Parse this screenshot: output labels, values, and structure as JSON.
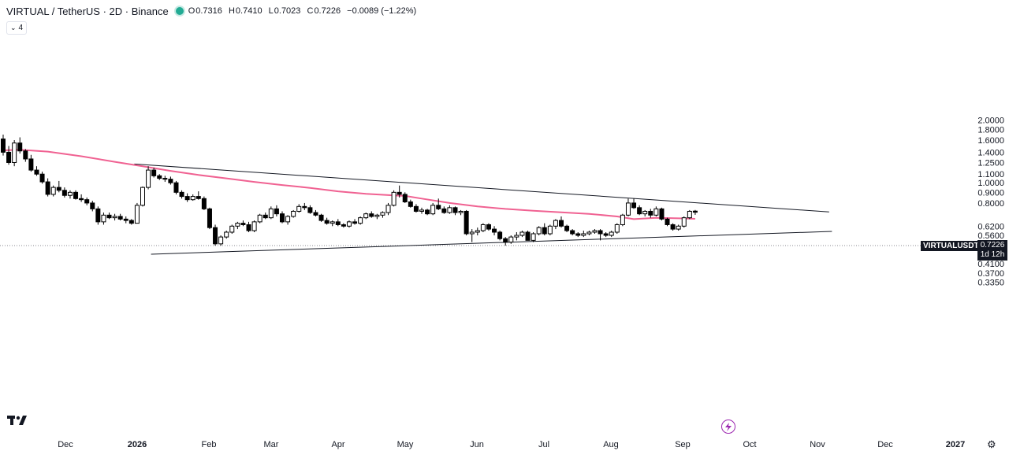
{
  "header": {
    "title": "VIRTUAL / TetherUS · 2D · Binance",
    "open_label": "O",
    "open": "0.7316",
    "high_label": "H",
    "high": "0.7410",
    "low_label": "L",
    "low": "0.7023",
    "close_label": "C",
    "close": "0.7226",
    "change": "−0.0089 (−1.22%)"
  },
  "indicator_pill": {
    "count": "4"
  },
  "price_scale": {
    "ticks": [
      "2.0000",
      "1.8000",
      "1.6000",
      "1.4000",
      "1.2500",
      "1.1000",
      "1.0000",
      "0.9000",
      "0.8000",
      "0.6200",
      "0.5600",
      "0.5000",
      "0.4500",
      "0.4100",
      "0.3700",
      "0.3350"
    ]
  },
  "time_axis": {
    "labels": [
      "Dec",
      "2026",
      "Feb",
      "Mar",
      "Apr",
      "May",
      "Jun",
      "Jul",
      "Aug",
      "Sep",
      "Oct",
      "Nov",
      "Dec",
      "2027"
    ]
  },
  "last_price": {
    "symbol": "VIRTUALUSDT",
    "price": "0.7226",
    "countdown": "1d 12h"
  },
  "colors": {
    "up": "#ffffff",
    "down": "#000000",
    "ma": "#f06292",
    "trendline": "#131722",
    "accent": "#22ab94"
  },
  "chart_data": {
    "type": "candlestick",
    "title": "VIRTUAL / TetherUS · 2D · Binance",
    "scale": "log",
    "ylim": [
      0.32,
      2.05
    ],
    "x_unit": "2-day bars",
    "candles": [
      [
        1.62,
        1.7,
        1.35,
        1.4
      ],
      [
        1.4,
        1.5,
        1.22,
        1.25
      ],
      [
        1.25,
        1.6,
        1.2,
        1.55
      ],
      [
        1.55,
        1.65,
        1.38,
        1.42
      ],
      [
        1.42,
        1.45,
        1.26,
        1.3
      ],
      [
        1.3,
        1.36,
        1.13,
        1.15
      ],
      [
        1.15,
        1.2,
        1.08,
        1.1
      ],
      [
        1.1,
        1.13,
        0.99,
        1.01
      ],
      [
        1.01,
        1.05,
        0.86,
        0.88
      ],
      [
        0.88,
        0.97,
        0.86,
        0.95
      ],
      [
        0.95,
        1.02,
        0.9,
        0.92
      ],
      [
        0.92,
        0.95,
        0.85,
        0.87
      ],
      [
        0.87,
        0.92,
        0.84,
        0.9
      ],
      [
        0.9,
        0.92,
        0.83,
        0.84
      ],
      [
        0.84,
        0.88,
        0.81,
        0.83
      ],
      [
        0.83,
        0.85,
        0.78,
        0.8
      ],
      [
        0.8,
        0.82,
        0.73,
        0.75
      ],
      [
        0.75,
        0.77,
        0.63,
        0.65
      ],
      [
        0.65,
        0.72,
        0.63,
        0.7
      ],
      [
        0.7,
        0.72,
        0.67,
        0.68
      ],
      [
        0.68,
        0.71,
        0.66,
        0.69
      ],
      [
        0.69,
        0.71,
        0.66,
        0.67
      ],
      [
        0.67,
        0.69,
        0.64,
        0.66
      ],
      [
        0.66,
        0.67,
        0.63,
        0.64
      ],
      [
        0.64,
        0.8,
        0.64,
        0.78
      ],
      [
        0.78,
        0.96,
        0.77,
        0.95
      ],
      [
        0.95,
        1.2,
        0.93,
        1.15
      ],
      [
        1.15,
        1.18,
        1.06,
        1.08
      ],
      [
        1.08,
        1.1,
        1.03,
        1.05
      ],
      [
        1.05,
        1.08,
        1.01,
        1.04
      ],
      [
        1.04,
        1.07,
        0.98,
        1.0
      ],
      [
        1.0,
        1.02,
        0.88,
        0.9
      ],
      [
        0.9,
        0.92,
        0.84,
        0.86
      ],
      [
        0.86,
        0.89,
        0.81,
        0.83
      ],
      [
        0.83,
        0.88,
        0.82,
        0.86
      ],
      [
        0.86,
        0.91,
        0.83,
        0.84
      ],
      [
        0.84,
        0.86,
        0.74,
        0.75
      ],
      [
        0.75,
        0.76,
        0.6,
        0.61
      ],
      [
        0.61,
        0.63,
        0.5,
        0.51
      ],
      [
        0.51,
        0.56,
        0.5,
        0.55
      ],
      [
        0.55,
        0.59,
        0.54,
        0.58
      ],
      [
        0.58,
        0.63,
        0.57,
        0.62
      ],
      [
        0.62,
        0.65,
        0.6,
        0.64
      ],
      [
        0.64,
        0.66,
        0.62,
        0.63
      ],
      [
        0.63,
        0.65,
        0.58,
        0.59
      ],
      [
        0.59,
        0.66,
        0.58,
        0.65
      ],
      [
        0.65,
        0.71,
        0.64,
        0.7
      ],
      [
        0.7,
        0.72,
        0.67,
        0.68
      ],
      [
        0.68,
        0.77,
        0.67,
        0.75
      ],
      [
        0.75,
        0.78,
        0.69,
        0.71
      ],
      [
        0.71,
        0.73,
        0.64,
        0.65
      ],
      [
        0.65,
        0.7,
        0.63,
        0.69
      ],
      [
        0.69,
        0.74,
        0.68,
        0.73
      ],
      [
        0.73,
        0.79,
        0.72,
        0.77
      ],
      [
        0.77,
        0.8,
        0.74,
        0.76
      ],
      [
        0.76,
        0.78,
        0.71,
        0.72
      ],
      [
        0.72,
        0.74,
        0.69,
        0.7
      ],
      [
        0.7,
        0.71,
        0.65,
        0.66
      ],
      [
        0.66,
        0.68,
        0.63,
        0.64
      ],
      [
        0.64,
        0.66,
        0.62,
        0.65
      ],
      [
        0.65,
        0.67,
        0.62,
        0.63
      ],
      [
        0.63,
        0.64,
        0.61,
        0.62
      ],
      [
        0.62,
        0.66,
        0.61,
        0.65
      ],
      [
        0.65,
        0.67,
        0.63,
        0.64
      ],
      [
        0.64,
        0.69,
        0.63,
        0.68
      ],
      [
        0.68,
        0.72,
        0.67,
        0.71
      ],
      [
        0.71,
        0.73,
        0.68,
        0.69
      ],
      [
        0.69,
        0.71,
        0.67,
        0.7
      ],
      [
        0.7,
        0.73,
        0.68,
        0.72
      ],
      [
        0.72,
        0.8,
        0.7,
        0.78
      ],
      [
        0.78,
        0.92,
        0.77,
        0.9
      ],
      [
        0.9,
        0.97,
        0.85,
        0.88
      ],
      [
        0.88,
        0.9,
        0.8,
        0.81
      ],
      [
        0.81,
        0.83,
        0.76,
        0.77
      ],
      [
        0.77,
        0.79,
        0.72,
        0.73
      ],
      [
        0.73,
        0.76,
        0.71,
        0.74
      ],
      [
        0.74,
        0.75,
        0.7,
        0.71
      ],
      [
        0.71,
        0.8,
        0.7,
        0.78
      ],
      [
        0.78,
        0.84,
        0.74,
        0.75
      ],
      [
        0.75,
        0.77,
        0.71,
        0.72
      ],
      [
        0.72,
        0.78,
        0.71,
        0.76
      ],
      [
        0.76,
        0.77,
        0.7,
        0.72
      ],
      [
        0.72,
        0.74,
        0.7,
        0.73
      ],
      [
        0.73,
        0.74,
        0.56,
        0.57
      ],
      [
        0.57,
        0.6,
        0.52,
        0.58
      ],
      [
        0.58,
        0.61,
        0.56,
        0.59
      ],
      [
        0.59,
        0.64,
        0.58,
        0.63
      ],
      [
        0.63,
        0.64,
        0.59,
        0.6
      ],
      [
        0.6,
        0.62,
        0.56,
        0.58
      ],
      [
        0.58,
        0.59,
        0.53,
        0.54
      ],
      [
        0.54,
        0.55,
        0.5,
        0.52
      ],
      [
        0.52,
        0.56,
        0.51,
        0.55
      ],
      [
        0.55,
        0.58,
        0.53,
        0.56
      ],
      [
        0.56,
        0.59,
        0.55,
        0.58
      ],
      [
        0.58,
        0.59,
        0.53,
        0.53
      ],
      [
        0.53,
        0.58,
        0.52,
        0.57
      ],
      [
        0.57,
        0.62,
        0.56,
        0.61
      ],
      [
        0.61,
        0.64,
        0.56,
        0.57
      ],
      [
        0.57,
        0.63,
        0.56,
        0.62
      ],
      [
        0.62,
        0.67,
        0.6,
        0.66
      ],
      [
        0.66,
        0.69,
        0.61,
        0.62
      ],
      [
        0.62,
        0.63,
        0.58,
        0.59
      ],
      [
        0.59,
        0.6,
        0.56,
        0.57
      ],
      [
        0.57,
        0.58,
        0.55,
        0.56
      ],
      [
        0.56,
        0.59,
        0.55,
        0.57
      ],
      [
        0.57,
        0.59,
        0.56,
        0.58
      ],
      [
        0.58,
        0.6,
        0.57,
        0.59
      ],
      [
        0.59,
        0.6,
        0.53,
        0.57
      ],
      [
        0.57,
        0.58,
        0.55,
        0.56
      ],
      [
        0.56,
        0.59,
        0.55,
        0.58
      ],
      [
        0.58,
        0.64,
        0.57,
        0.63
      ],
      [
        0.63,
        0.71,
        0.62,
        0.7
      ],
      [
        0.7,
        0.84,
        0.69,
        0.8
      ],
      [
        0.8,
        0.84,
        0.75,
        0.76
      ],
      [
        0.76,
        0.78,
        0.7,
        0.71
      ],
      [
        0.71,
        0.74,
        0.69,
        0.73
      ],
      [
        0.73,
        0.75,
        0.68,
        0.7
      ],
      [
        0.7,
        0.77,
        0.69,
        0.75
      ],
      [
        0.75,
        0.76,
        0.66,
        0.67
      ],
      [
        0.67,
        0.68,
        0.62,
        0.63
      ],
      [
        0.63,
        0.64,
        0.59,
        0.6
      ],
      [
        0.6,
        0.63,
        0.59,
        0.62
      ],
      [
        0.62,
        0.69,
        0.61,
        0.68
      ],
      [
        0.68,
        0.74,
        0.67,
        0.73
      ],
      [
        0.7316,
        0.741,
        0.7023,
        0.7226
      ]
    ],
    "moving_average": {
      "period": 200,
      "points": [
        [
          0,
          1.43
        ],
        [
          3,
          1.44
        ],
        [
          8,
          1.41
        ],
        [
          14,
          1.34
        ],
        [
          20,
          1.26
        ],
        [
          25,
          1.2
        ],
        [
          30,
          1.14
        ],
        [
          35,
          1.09
        ],
        [
          40,
          1.05
        ],
        [
          45,
          1.01
        ],
        [
          50,
          0.975
        ],
        [
          55,
          0.945
        ],
        [
          60,
          0.91
        ],
        [
          65,
          0.885
        ],
        [
          70,
          0.87
        ],
        [
          72,
          0.865
        ],
        [
          75,
          0.84
        ],
        [
          80,
          0.8
        ],
        [
          85,
          0.77
        ],
        [
          90,
          0.75
        ],
        [
          95,
          0.735
        ],
        [
          100,
          0.722
        ],
        [
          105,
          0.71
        ],
        [
          110,
          0.69
        ],
        [
          113,
          0.67
        ],
        [
          117,
          0.68
        ],
        [
          122,
          0.675
        ],
        [
          124,
          0.672
        ]
      ]
    },
    "trendlines": [
      {
        "from": [
          0.7316,
          0.741,
          0.7023,
          0.7226
        ],
        "to": [
          0.7316,
          0.741,
          0.7023,
          0.7226
        ]
      }
    ],
    "resistance_line": {
      "x": [
        23.5,
        148
      ],
      "y": [
        1.23,
        0.725
      ]
    },
    "support_line": {
      "x": [
        26.5,
        148.5
      ],
      "y": [
        0.455,
        0.585
      ]
    }
  }
}
